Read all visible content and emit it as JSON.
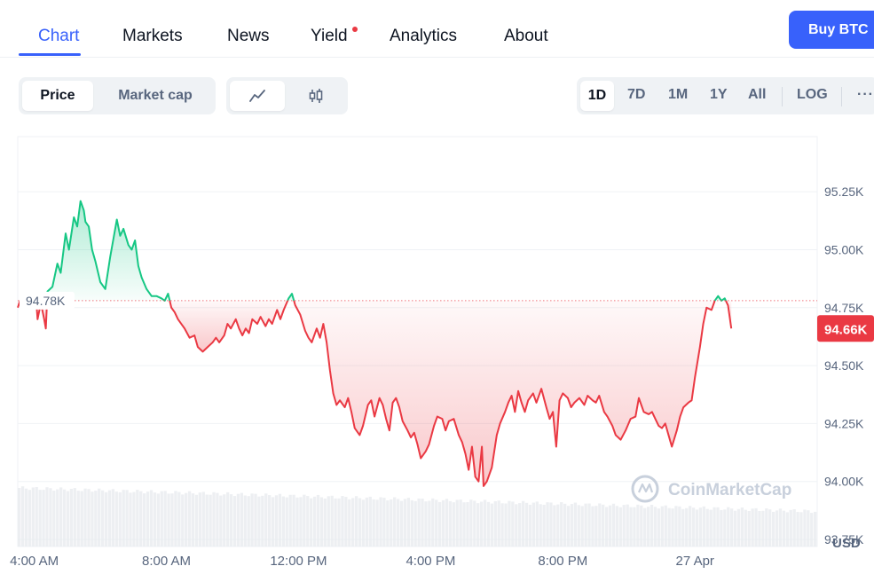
{
  "nav": {
    "tabs": [
      {
        "label": "Chart",
        "active": true
      },
      {
        "label": "Markets"
      },
      {
        "label": "News"
      },
      {
        "label": "Yield",
        "badge_dot": true
      },
      {
        "label": "Analytics"
      },
      {
        "label": "About"
      }
    ],
    "buy_button": "Buy BTC"
  },
  "controls": {
    "metric_toggle": [
      "Price",
      "Market cap"
    ],
    "metric_selected": "Price",
    "chart_style_icons": [
      "line-chart-icon",
      "candlestick-icon"
    ],
    "chart_style_selected": "line",
    "ranges": [
      "1D",
      "7D",
      "1M",
      "1Y",
      "All"
    ],
    "range_selected": "1D",
    "log_label": "LOG",
    "more_label": "···"
  },
  "colors": {
    "accent": "#3861fb",
    "up": "#16c784",
    "down": "#ea3943"
  },
  "chart_data": {
    "type": "line",
    "currency_label": "USD",
    "watermark": "CoinMarketCap",
    "open_price": 94.78,
    "open_label": "94.78K",
    "last_price": 94.66,
    "last_label": "94.66K",
    "ylim": [
      93.75,
      95.35
    ],
    "y_ticks": [
      93.75,
      94.0,
      94.25,
      94.5,
      94.75,
      95.0,
      95.25
    ],
    "y_tick_labels": [
      "93.75K",
      "94.00K",
      "94.25K",
      "94.50K",
      "94.75K",
      "95.00K",
      "95.25K"
    ],
    "x_tick_labels": [
      "4:00 AM",
      "8:00 AM",
      "12:00 PM",
      "4:00 PM",
      "8:00 PM",
      "27 Apr"
    ],
    "x_tick_hours": [
      4,
      8,
      12,
      16,
      20,
      24
    ],
    "xlim_hours": [
      3.5,
      27.7
    ],
    "price_points": [
      [
        3.5,
        94.75
      ],
      [
        3.6,
        94.79
      ],
      [
        3.7,
        94.81
      ],
      [
        3.85,
        94.78
      ],
      [
        4.0,
        94.79
      ],
      [
        4.05,
        94.8
      ],
      [
        4.1,
        94.7
      ],
      [
        4.2,
        94.77
      ],
      [
        4.3,
        94.7
      ],
      [
        4.35,
        94.66
      ],
      [
        4.4,
        94.82
      ],
      [
        4.55,
        94.84
      ],
      [
        4.7,
        94.94
      ],
      [
        4.8,
        94.9
      ],
      [
        4.95,
        95.07
      ],
      [
        5.05,
        95.0
      ],
      [
        5.2,
        95.14
      ],
      [
        5.3,
        95.1
      ],
      [
        5.4,
        95.21
      ],
      [
        5.5,
        95.17
      ],
      [
        5.55,
        95.12
      ],
      [
        5.65,
        95.1
      ],
      [
        5.75,
        95.0
      ],
      [
        5.85,
        94.95
      ],
      [
        6.0,
        94.86
      ],
      [
        6.15,
        94.83
      ],
      [
        6.3,
        94.97
      ],
      [
        6.4,
        95.05
      ],
      [
        6.5,
        95.13
      ],
      [
        6.6,
        95.06
      ],
      [
        6.7,
        95.09
      ],
      [
        6.85,
        95.02
      ],
      [
        6.95,
        95.0
      ],
      [
        7.05,
        95.04
      ],
      [
        7.15,
        94.93
      ],
      [
        7.25,
        94.88
      ],
      [
        7.4,
        94.83
      ],
      [
        7.55,
        94.8
      ],
      [
        7.7,
        94.8
      ],
      [
        7.85,
        94.79
      ],
      [
        7.95,
        94.78
      ],
      [
        8.05,
        94.81
      ],
      [
        8.15,
        94.75
      ],
      [
        8.25,
        94.73
      ],
      [
        8.35,
        94.7
      ],
      [
        8.45,
        94.68
      ],
      [
        8.55,
        94.66
      ],
      [
        8.7,
        94.62
      ],
      [
        8.85,
        94.63
      ],
      [
        8.95,
        94.58
      ],
      [
        9.1,
        94.56
      ],
      [
        9.25,
        94.58
      ],
      [
        9.4,
        94.6
      ],
      [
        9.5,
        94.62
      ],
      [
        9.6,
        94.6
      ],
      [
        9.75,
        94.63
      ],
      [
        9.85,
        94.68
      ],
      [
        9.95,
        94.66
      ],
      [
        10.1,
        94.7
      ],
      [
        10.2,
        94.66
      ],
      [
        10.3,
        94.63
      ],
      [
        10.4,
        94.66
      ],
      [
        10.5,
        94.64
      ],
      [
        10.6,
        94.7
      ],
      [
        10.75,
        94.68
      ],
      [
        10.85,
        94.71
      ],
      [
        11.0,
        94.67
      ],
      [
        11.1,
        94.7
      ],
      [
        11.2,
        94.68
      ],
      [
        11.35,
        94.74
      ],
      [
        11.45,
        94.7
      ],
      [
        11.55,
        94.74
      ],
      [
        11.7,
        94.79
      ],
      [
        11.8,
        94.81
      ],
      [
        11.9,
        94.76
      ],
      [
        12.05,
        94.72
      ],
      [
        12.2,
        94.65
      ],
      [
        12.3,
        94.62
      ],
      [
        12.4,
        94.6
      ],
      [
        12.55,
        94.66
      ],
      [
        12.65,
        94.62
      ],
      [
        12.75,
        94.68
      ],
      [
        12.85,
        94.6
      ],
      [
        12.95,
        94.48
      ],
      [
        13.05,
        94.38
      ],
      [
        13.15,
        94.33
      ],
      [
        13.25,
        94.35
      ],
      [
        13.4,
        94.32
      ],
      [
        13.5,
        94.36
      ],
      [
        13.6,
        94.3
      ],
      [
        13.7,
        94.23
      ],
      [
        13.85,
        94.2
      ],
      [
        13.95,
        94.24
      ],
      [
        14.1,
        94.33
      ],
      [
        14.2,
        94.35
      ],
      [
        14.3,
        94.28
      ],
      [
        14.45,
        94.36
      ],
      [
        14.55,
        94.33
      ],
      [
        14.65,
        94.27
      ],
      [
        14.75,
        94.22
      ],
      [
        14.85,
        94.34
      ],
      [
        14.95,
        94.36
      ],
      [
        15.05,
        94.32
      ],
      [
        15.15,
        94.26
      ],
      [
        15.3,
        94.22
      ],
      [
        15.4,
        94.19
      ],
      [
        15.5,
        94.21
      ],
      [
        15.6,
        94.16
      ],
      [
        15.7,
        94.1
      ],
      [
        15.85,
        94.13
      ],
      [
        15.95,
        94.16
      ],
      [
        16.1,
        94.24
      ],
      [
        16.2,
        94.28
      ],
      [
        16.35,
        94.27
      ],
      [
        16.45,
        94.22
      ],
      [
        16.55,
        94.26
      ],
      [
        16.7,
        94.27
      ],
      [
        16.85,
        94.2
      ],
      [
        16.95,
        94.17
      ],
      [
        17.05,
        94.12
      ],
      [
        17.15,
        94.05
      ],
      [
        17.25,
        94.15
      ],
      [
        17.35,
        94.02
      ],
      [
        17.45,
        94.0
      ],
      [
        17.55,
        94.15
      ],
      [
        17.6,
        93.98
      ],
      [
        17.7,
        94.0
      ],
      [
        17.85,
        94.06
      ],
      [
        18.0,
        94.2
      ],
      [
        18.1,
        94.25
      ],
      [
        18.25,
        94.3
      ],
      [
        18.35,
        94.34
      ],
      [
        18.45,
        94.37
      ],
      [
        18.55,
        94.3
      ],
      [
        18.65,
        94.39
      ],
      [
        18.75,
        94.34
      ],
      [
        18.85,
        94.3
      ],
      [
        18.95,
        94.35
      ],
      [
        19.1,
        94.38
      ],
      [
        19.2,
        94.34
      ],
      [
        19.35,
        94.4
      ],
      [
        19.5,
        94.32
      ],
      [
        19.6,
        94.27
      ],
      [
        19.7,
        94.3
      ],
      [
        19.8,
        94.15
      ],
      [
        19.9,
        94.35
      ],
      [
        20.0,
        94.38
      ],
      [
        20.15,
        94.36
      ],
      [
        20.25,
        94.32
      ],
      [
        20.35,
        94.34
      ],
      [
        20.5,
        94.36
      ],
      [
        20.65,
        94.33
      ],
      [
        20.75,
        94.37
      ],
      [
        20.9,
        94.35
      ],
      [
        21.0,
        94.34
      ],
      [
        21.1,
        94.37
      ],
      [
        21.25,
        94.3
      ],
      [
        21.35,
        94.28
      ],
      [
        21.5,
        94.24
      ],
      [
        21.6,
        94.2
      ],
      [
        21.75,
        94.18
      ],
      [
        21.9,
        94.22
      ],
      [
        22.05,
        94.27
      ],
      [
        22.2,
        94.28
      ],
      [
        22.3,
        94.36
      ],
      [
        22.45,
        94.3
      ],
      [
        22.6,
        94.29
      ],
      [
        22.7,
        94.3
      ],
      [
        22.8,
        94.27
      ],
      [
        22.9,
        94.24
      ],
      [
        23.0,
        94.23
      ],
      [
        23.1,
        94.25
      ],
      [
        23.2,
        94.2
      ],
      [
        23.3,
        94.15
      ],
      [
        23.45,
        94.22
      ],
      [
        23.55,
        94.28
      ],
      [
        23.65,
        94.32
      ],
      [
        23.8,
        94.34
      ],
      [
        23.9,
        94.35
      ],
      [
        24.0,
        94.45
      ],
      [
        24.15,
        94.58
      ],
      [
        24.25,
        94.68
      ],
      [
        24.35,
        94.75
      ],
      [
        24.5,
        94.74
      ],
      [
        24.6,
        94.78
      ],
      [
        24.7,
        94.8
      ],
      [
        24.8,
        94.78
      ],
      [
        24.9,
        94.79
      ],
      [
        25.0,
        94.76
      ],
      [
        25.1,
        94.66
      ]
    ],
    "volume_level_start": 1.0,
    "volume_level_end": 0.6
  }
}
